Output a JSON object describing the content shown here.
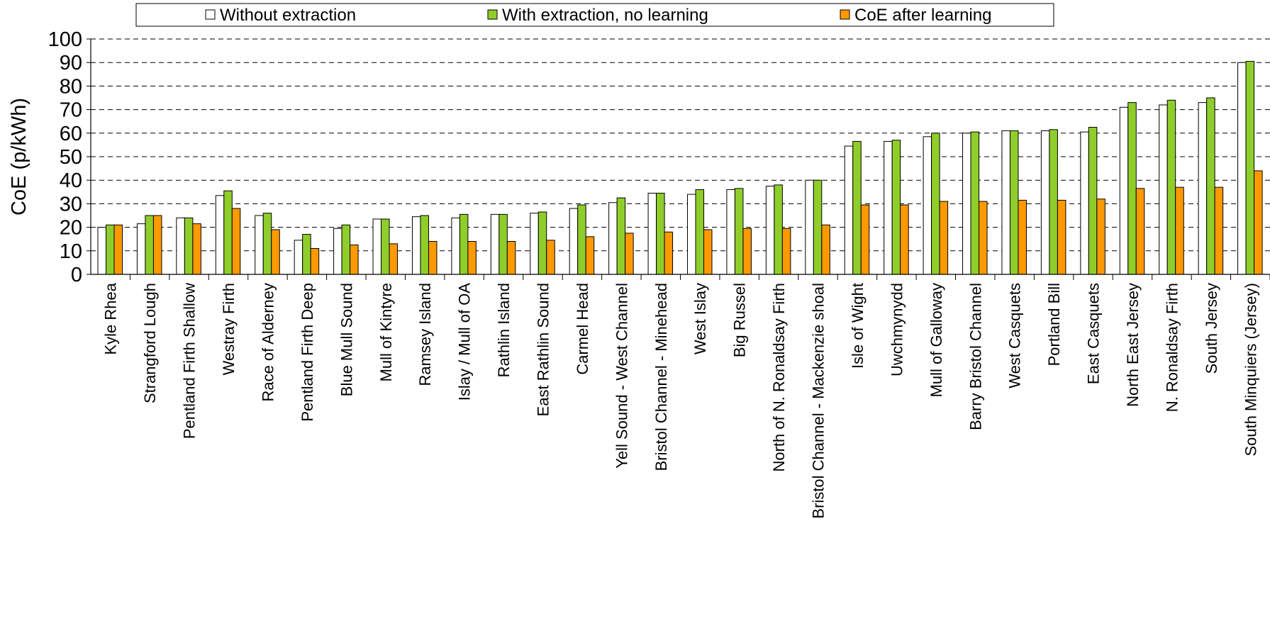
{
  "chart_data": {
    "type": "bar",
    "title": "",
    "xlabel": "",
    "ylabel": "CoE (p/kWh)",
    "ylim": [
      0,
      100
    ],
    "yticks": [
      0,
      10,
      20,
      30,
      40,
      50,
      60,
      70,
      80,
      90,
      100
    ],
    "grid": "dashed horizontal",
    "legend_position": "top",
    "categories": [
      "Kyle Rhea",
      "Strangford Lough",
      "Pentland Firth Shallow",
      "Westray Firth",
      "Race of Alderney",
      "Pentland Firth Deep",
      "Blue Mull Sound",
      "Mull of Kintyre",
      "Ramsey Island",
      "Islay / Mull of OA",
      "Rathlin Island",
      "East Rathlin Sound",
      "Carmel Head",
      "Yell Sound - West Channel",
      "Bristol Channel - Minehead",
      "West Islay",
      "Big Russel",
      "North of N. Ronaldsay Firth",
      "Bristol Channel - Mackenzie shoal",
      "Isle of Wight",
      "Uwchmynydd",
      "Mull of Galloway",
      "Barry Bristol Channel",
      "West Casquets",
      "Portland Bill",
      "East Casquets",
      "North East Jersey",
      "N. Ronaldsay Firth",
      "South Jersey",
      "South Minquiers (Jersey)"
    ],
    "series": [
      {
        "name": "Without extraction",
        "color": "#ffffff",
        "values": [
          20,
          21.5,
          24,
          33.5,
          25,
          14.5,
          19.5,
          23.5,
          24.5,
          24,
          25.5,
          26,
          28,
          30.5,
          34.5,
          34,
          36,
          37.5,
          40,
          54.5,
          56.5,
          58.5,
          60,
          61,
          61,
          60.5,
          71,
          72,
          73,
          90
        ]
      },
      {
        "name": "With extraction, no learning",
        "color": "#8fce2a",
        "values": [
          21,
          25,
          24,
          35.5,
          26,
          17,
          21,
          23.5,
          25,
          25.5,
          25.5,
          26.5,
          29.5,
          32.5,
          34.5,
          36,
          36.5,
          38,
          40,
          56.5,
          57,
          60,
          60.5,
          61,
          61.5,
          62.5,
          73,
          74,
          75,
          90.5
        ]
      },
      {
        "name": "CoE after learning",
        "color": "#ff9900",
        "values": [
          21,
          25,
          21.5,
          28,
          19,
          11,
          12.5,
          13,
          14,
          14,
          14,
          14.5,
          16,
          17.5,
          18,
          19,
          19.5,
          19.5,
          21,
          29.5,
          29.5,
          31,
          31,
          31.5,
          31.5,
          32,
          36.5,
          37,
          37,
          44
        ]
      }
    ]
  }
}
